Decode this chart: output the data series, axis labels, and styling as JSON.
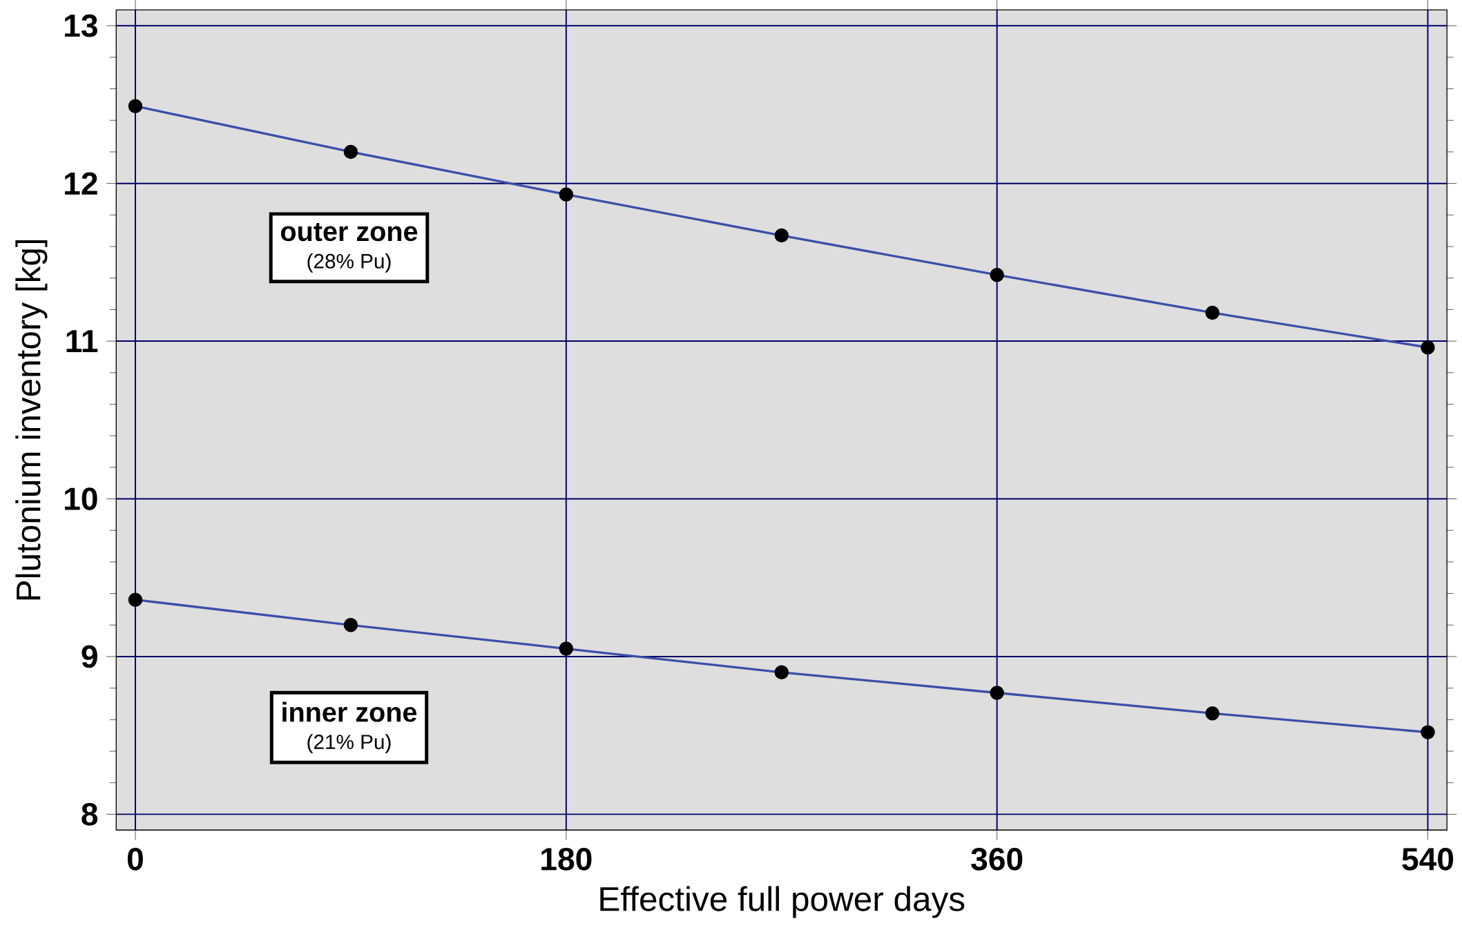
{
  "chart_data": {
    "type": "line",
    "xlabel": "Effective full power days",
    "ylabel": "Plutonium inventory [kg]",
    "x": [
      0,
      90,
      180,
      270,
      360,
      450,
      540
    ],
    "series": [
      {
        "name": "outer zone",
        "color": "#3a4fa8",
        "values": [
          12.49,
          12.2,
          11.93,
          11.67,
          11.42,
          11.18,
          10.96
        ]
      },
      {
        "name": "inner zone",
        "color": "#3a4fa8",
        "values": [
          9.36,
          9.2,
          9.05,
          8.9,
          8.77,
          8.64,
          8.52
        ]
      }
    ],
    "annotations": [
      "(28% Pu)",
      "(21% Pu)"
    ],
    "xlim": [
      -8,
      548
    ],
    "ylim": [
      7.9,
      13.1
    ],
    "xticks": [
      0,
      180,
      360,
      540
    ],
    "yticks": [
      8,
      9,
      10,
      11,
      12,
      13
    ],
    "grid": true,
    "marker": "circle",
    "line_style": "solid",
    "legend": false
  }
}
